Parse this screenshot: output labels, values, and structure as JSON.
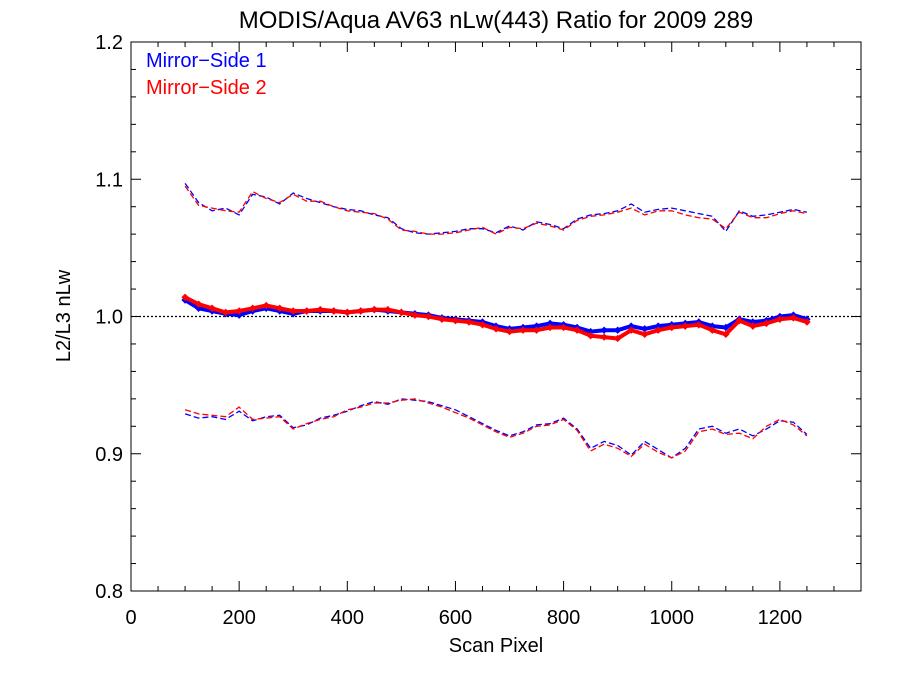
{
  "chart_data": {
    "type": "line",
    "title": "MODIS/Aqua AV63 nLw(443) Ratio for 2009 289",
    "xlabel": "Scan Pixel",
    "ylabel": "L2/L3 nLw",
    "xlim": [
      0,
      1350
    ],
    "ylim": [
      0.8,
      1.2
    ],
    "xticks": [
      0,
      200,
      400,
      600,
      800,
      1000,
      1200
    ],
    "yticks": [
      0.8,
      0.9,
      1.0,
      1.1,
      1.2
    ],
    "x_tick_labels": [
      "0",
      "200",
      "400",
      "600",
      "800",
      "1000",
      "1200"
    ],
    "y_tick_labels": [
      "0.8",
      "0.9",
      "1.0",
      "1.1",
      "1.2"
    ],
    "reference_line": 1.0,
    "legend": [
      {
        "label": "Mirror−Side 1",
        "color": "#0000ff"
      },
      {
        "label": "Mirror−Side 2",
        "color": "#ff0000"
      }
    ],
    "legend_position": "top-left",
    "series": [
      {
        "name": "Mirror−Side 1",
        "color": "#0000ff",
        "x": [
          100,
          125,
          150,
          175,
          200,
          225,
          250,
          275,
          300,
          325,
          350,
          375,
          400,
          425,
          450,
          475,
          500,
          525,
          550,
          575,
          600,
          625,
          650,
          675,
          700,
          725,
          750,
          775,
          800,
          825,
          850,
          875,
          900,
          925,
          950,
          975,
          1000,
          1025,
          1050,
          1075,
          1100,
          1125,
          1150,
          1175,
          1200,
          1225,
          1250
        ],
        "values": [
          1.012,
          1.006,
          1.004,
          1.002,
          1.001,
          1.004,
          1.006,
          1.004,
          1.002,
          1.004,
          1.004,
          1.004,
          1.003,
          1.004,
          1.005,
          1.004,
          1.003,
          1.002,
          1.001,
          0.999,
          0.998,
          0.997,
          0.996,
          0.993,
          0.991,
          0.992,
          0.993,
          0.995,
          0.994,
          0.992,
          0.989,
          0.99,
          0.99,
          0.993,
          0.991,
          0.993,
          0.994,
          0.995,
          0.996,
          0.993,
          0.992,
          0.998,
          0.996,
          0.997,
          1.0,
          1.001,
          0.998
        ],
        "upper": [
          1.097,
          1.083,
          1.077,
          1.079,
          1.074,
          1.089,
          1.087,
          1.082,
          1.09,
          1.086,
          1.083,
          1.08,
          1.078,
          1.077,
          1.074,
          1.072,
          1.064,
          1.061,
          1.06,
          1.061,
          1.062,
          1.064,
          1.064,
          1.061,
          1.066,
          1.063,
          1.069,
          1.067,
          1.064,
          1.071,
          1.074,
          1.075,
          1.077,
          1.082,
          1.076,
          1.078,
          1.079,
          1.077,
          1.075,
          1.073,
          1.062,
          1.077,
          1.073,
          1.074,
          1.076,
          1.078,
          1.076
        ],
        "lower": [
          0.929,
          0.926,
          0.927,
          0.925,
          0.931,
          0.924,
          0.927,
          0.928,
          0.919,
          0.921,
          0.926,
          0.928,
          0.931,
          0.935,
          0.938,
          0.936,
          0.94,
          0.939,
          0.938,
          0.935,
          0.932,
          0.927,
          0.922,
          0.917,
          0.913,
          0.916,
          0.921,
          0.922,
          0.926,
          0.918,
          0.904,
          0.909,
          0.906,
          0.899,
          0.909,
          0.903,
          0.897,
          0.904,
          0.918,
          0.92,
          0.915,
          0.918,
          0.913,
          0.918,
          0.924,
          0.923,
          0.914
        ]
      },
      {
        "name": "Mirror−Side 2",
        "color": "#ff0000",
        "x": [
          100,
          125,
          150,
          175,
          200,
          225,
          250,
          275,
          300,
          325,
          350,
          375,
          400,
          425,
          450,
          475,
          500,
          525,
          550,
          575,
          600,
          625,
          650,
          675,
          700,
          725,
          750,
          775,
          800,
          825,
          850,
          875,
          900,
          925,
          950,
          975,
          1000,
          1025,
          1050,
          1075,
          1100,
          1125,
          1150,
          1175,
          1200,
          1225,
          1250
        ],
        "values": [
          1.014,
          1.009,
          1.006,
          1.003,
          1.004,
          1.006,
          1.008,
          1.006,
          1.004,
          1.004,
          1.005,
          1.004,
          1.003,
          1.004,
          1.005,
          1.005,
          1.003,
          1.001,
          1.0,
          0.998,
          0.997,
          0.996,
          0.994,
          0.991,
          0.989,
          0.99,
          0.99,
          0.992,
          0.992,
          0.99,
          0.986,
          0.985,
          0.984,
          0.99,
          0.987,
          0.99,
          0.992,
          0.993,
          0.994,
          0.99,
          0.987,
          0.997,
          0.993,
          0.995,
          0.998,
          0.999,
          0.996
        ],
        "upper": [
          1.095,
          1.081,
          1.079,
          1.077,
          1.076,
          1.091,
          1.086,
          1.083,
          1.089,
          1.084,
          1.084,
          1.08,
          1.077,
          1.076,
          1.075,
          1.071,
          1.063,
          1.062,
          1.06,
          1.06,
          1.061,
          1.063,
          1.065,
          1.06,
          1.065,
          1.064,
          1.068,
          1.066,
          1.063,
          1.07,
          1.073,
          1.074,
          1.076,
          1.079,
          1.074,
          1.077,
          1.077,
          1.074,
          1.072,
          1.071,
          1.064,
          1.076,
          1.072,
          1.072,
          1.075,
          1.077,
          1.075
        ],
        "lower": [
          0.932,
          0.929,
          0.928,
          0.927,
          0.934,
          0.925,
          0.926,
          0.927,
          0.918,
          0.922,
          0.925,
          0.927,
          0.932,
          0.934,
          0.937,
          0.937,
          0.939,
          0.94,
          0.937,
          0.934,
          0.93,
          0.926,
          0.921,
          0.916,
          0.912,
          0.915,
          0.92,
          0.921,
          0.925,
          0.917,
          0.902,
          0.907,
          0.904,
          0.898,
          0.907,
          0.901,
          0.897,
          0.902,
          0.916,
          0.918,
          0.914,
          0.915,
          0.911,
          0.92,
          0.925,
          0.921,
          0.913
        ]
      }
    ]
  }
}
